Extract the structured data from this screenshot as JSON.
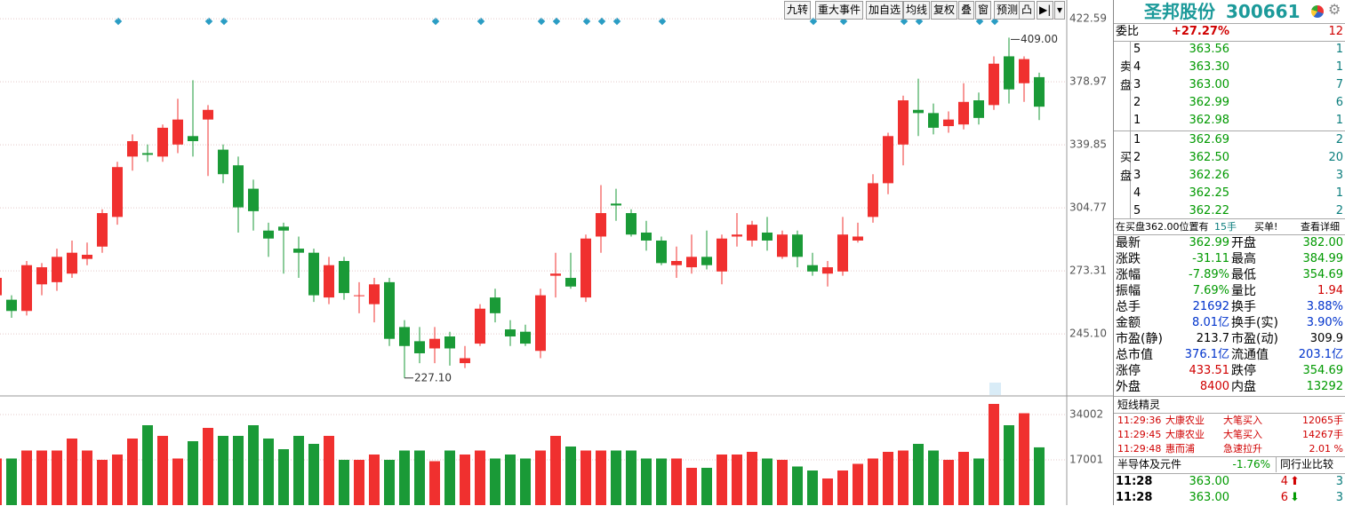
{
  "toolbar": [
    "九转",
    "重大事件",
    "加自选",
    "均线",
    "复权",
    "叠",
    "窗",
    "预测"
  ],
  "chart_data": [
    {
      "type": "candlestick",
      "log_scale": true,
      "grid": true,
      "up_color": "#f0302f",
      "down_color": "#1a9a37",
      "ylim": [
        220.5,
        436.5
      ],
      "yticks": [
        422.59,
        378.97,
        339.85,
        304.77,
        273.31,
        {
          "value": 245.1,
          "label": "245.10"
        }
      ],
      "high_label": "409.00",
      "low_label": "227.10",
      "open": [
        262,
        260,
        255,
        267,
        268,
        272,
        279,
        285,
        300,
        333,
        335,
        333,
        340,
        345,
        355,
        337,
        328,
        315,
        293,
        295,
        284,
        282,
        261,
        278,
        262,
        258,
        268,
        248,
        242,
        239,
        244,
        233,
        241,
        261,
        247,
        246,
        238,
        271,
        270,
        261,
        290,
        307,
        302,
        292,
        288,
        276,
        275,
        280,
        273,
        290,
        288,
        292,
        280,
        291,
        276,
        272,
        273,
        288,
        300,
        318,
        340,
        361,
        359,
        351,
        352,
        367,
        364,
        396,
        378,
        382
      ],
      "high": [
        272,
        262,
        278,
        277,
        284,
        288,
        287,
        304,
        330,
        346,
        340,
        352,
        368,
        380,
        364,
        340,
        333,
        320,
        297,
        297,
        290,
        284,
        280,
        280,
        268,
        270,
        270,
        251,
        248,
        248,
        246,
        240,
        258,
        265,
        251,
        249,
        265,
        282,
        282,
        291,
        317,
        315,
        304,
        298,
        290,
        285,
        291,
        293,
        291,
        302,
        298,
        300,
        293,
        293,
        282,
        278,
        300,
        297,
        323,
        347,
        370,
        381,
        365,
        360,
        378,
        372,
        396,
        409,
        396,
        384.99
      ],
      "low": [
        258,
        252,
        253,
        262,
        264,
        270,
        276,
        282,
        296,
        325,
        330,
        330,
        335,
        333,
        322,
        318,
        292,
        293,
        280,
        272,
        270,
        259,
        258,
        260,
        254,
        250,
        240,
        227.1,
        233,
        233,
        232,
        231,
        240,
        250,
        240,
        240,
        235,
        261,
        265,
        259,
        282,
        298,
        290,
        283,
        276,
        270,
        272,
        274,
        267,
        285,
        285,
        283,
        279,
        275,
        271,
        266,
        271,
        287,
        297,
        312,
        328,
        345,
        346,
        347,
        349,
        352,
        361,
        365,
        366,
        354.69
      ],
      "close": [
        270,
        255,
        276,
        275,
        280,
        282,
        281,
        302,
        327,
        342,
        334,
        350,
        355,
        342,
        361,
        323,
        305,
        303,
        289,
        293,
        282,
        262,
        276,
        263,
        262,
        267,
        243,
        240,
        237,
        243,
        239,
        235,
        256,
        254,
        244,
        241,
        262,
        272,
        266,
        289,
        302,
        306,
        291,
        288,
        277,
        278,
        280,
        276,
        289,
        291,
        296,
        288,
        291,
        280,
        273,
        275,
        291,
        290,
        318,
        345,
        367,
        359,
        350,
        355,
        366,
        356,
        391,
        374,
        394.1,
        362.99
      ]
    },
    {
      "type": "bar",
      "ylim": [
        0,
        40000
      ],
      "yticks": [
        34002,
        17001
      ],
      "values": [
        17500,
        17500,
        20500,
        20500,
        20500,
        25000,
        20500,
        17000,
        19000,
        25000,
        30000,
        26000,
        17500,
        24000,
        29000,
        26000,
        26000,
        30000,
        25000,
        21000,
        26000,
        23000,
        26000,
        17000,
        17000,
        19000,
        17000,
        20500,
        20500,
        16500,
        20500,
        19000,
        20500,
        17500,
        19000,
        17500,
        20500,
        26000,
        22000,
        20500,
        20500,
        20500,
        20500,
        17500,
        17500,
        17500,
        14000,
        14000,
        19000,
        19000,
        20000,
        17500,
        17000,
        14500,
        13000,
        10000,
        13000,
        15500,
        17500,
        20000,
        20500,
        23000,
        20500,
        17000,
        20000,
        17500,
        38000,
        30000,
        34500,
        21692
      ]
    }
  ],
  "quote": {
    "name": "圣邦股份",
    "code": "300661"
  },
  "order_book": {
    "ratio_label": "委比",
    "ratio": "+27.27%",
    "ratio_diff": "12",
    "sell_label": "卖盘",
    "buy_label": "买盘",
    "sell": [
      [
        "5",
        "363.56",
        "1"
      ],
      [
        "4",
        "363.30",
        "1"
      ],
      [
        "3",
        "363.00",
        "7"
      ],
      [
        "2",
        "362.99",
        "6"
      ],
      [
        "1",
        "362.98",
        "1"
      ]
    ],
    "buy": [
      [
        "1",
        "362.69",
        "2"
      ],
      [
        "2",
        "362.50",
        "20"
      ],
      [
        "3",
        "362.26",
        "3"
      ],
      [
        "4",
        "362.25",
        "1"
      ],
      [
        "5",
        "362.22",
        "2"
      ]
    ]
  },
  "notice": [
    "在买盘362.00位置有",
    "15手",
    "买单!",
    "查看详细"
  ],
  "stats": [
    [
      "最新",
      "362.99",
      "#009900",
      "开盘",
      "382.00",
      "#009900"
    ],
    [
      "涨跌",
      "-31.11",
      "#009900",
      "最高",
      "384.99",
      "#009900"
    ],
    [
      "涨幅",
      "-7.89%",
      "#009900",
      "最低",
      "354.69",
      "#009900"
    ],
    [
      "振幅",
      "7.69%",
      "#009900",
      "量比",
      "1.94",
      "#d00000"
    ],
    [
      "总手",
      "21692",
      "#0033cc",
      "换手",
      "3.88%",
      "#0033cc"
    ],
    [
      "金额",
      "8.01亿",
      "#0033cc",
      "换手(实)",
      "3.90%",
      "#0033cc"
    ],
    [
      "市盈(静)",
      "213.7",
      "#000000",
      "市盈(动)",
      "309.9",
      "#000000"
    ],
    [
      "总市值",
      "376.1亿",
      "#0033cc",
      "流通值",
      "203.1亿",
      "#0033cc"
    ],
    [
      "涨停",
      "433.51",
      "#d00000",
      "跌停",
      "354.69",
      "#009900"
    ],
    [
      "外盘",
      "8400",
      "#d00000",
      "内盘",
      "13292",
      "#009900"
    ]
  ],
  "elves": {
    "title": "短线精灵",
    "rows": [
      [
        "11:29:36",
        "大康农业",
        "大笔买入",
        "12065手"
      ],
      [
        "11:29:45",
        "大康农业",
        "大笔买入",
        "14267手"
      ],
      [
        "11:29:48",
        "惠而浦",
        "急速拉升",
        "2.01 %"
      ]
    ]
  },
  "sector": [
    "半导体及元件",
    "-1.76%",
    "同行业比较"
  ],
  "ticks": [
    [
      "11:28",
      "363.00",
      "4",
      "3"
    ],
    [
      "11:28",
      "363.00",
      "6",
      "3"
    ]
  ]
}
